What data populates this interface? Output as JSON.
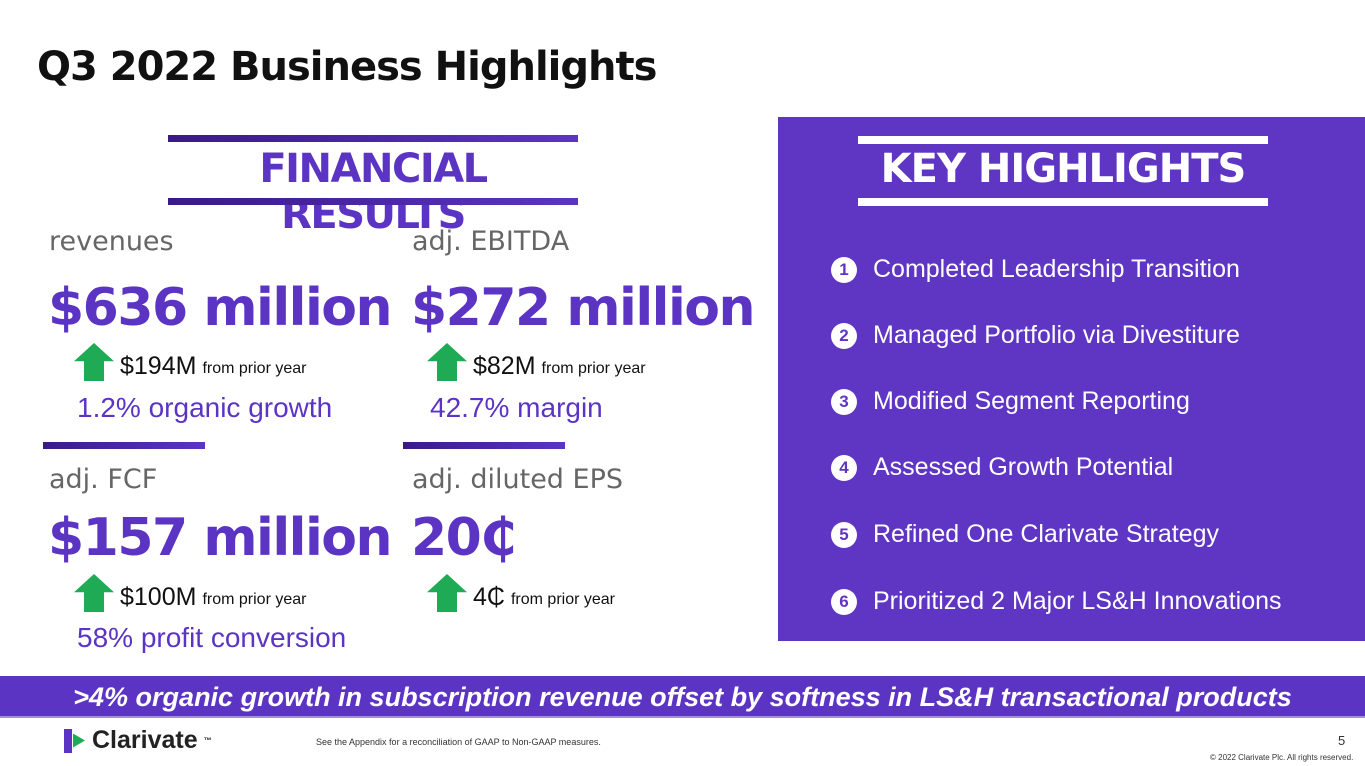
{
  "title": "Q3 2022 Business Highlights",
  "financial": {
    "heading": "FINANCIAL RESULTS",
    "metrics": [
      {
        "label": "revenues",
        "value": "$636 million",
        "change": "$194M",
        "change_suffix": "from prior year",
        "sub": "1.2% organic growth"
      },
      {
        "label": "adj. EBITDA",
        "value": "$272 million",
        "change": "$82M",
        "change_suffix": "from prior year",
        "sub": "42.7% margin"
      },
      {
        "label": "adj. FCF",
        "value": "$157 million",
        "change": "$100M",
        "change_suffix": "from prior year",
        "sub": "58% profit conversion"
      },
      {
        "label": "adj. diluted EPS",
        "value": "20₵",
        "change": "4₵",
        "change_suffix": "from prior year",
        "sub": ""
      }
    ]
  },
  "highlights": {
    "heading": "KEY HIGHLIGHTS",
    "items": [
      {
        "n": "1",
        "text": "Completed Leadership Transition"
      },
      {
        "n": "2",
        "text": "Managed Portfolio via Divestiture"
      },
      {
        "n": "3",
        "text": "Modified Segment Reporting"
      },
      {
        "n": "4",
        "text": "Assessed Growth Potential"
      },
      {
        "n": "5",
        "text": "Refined One Clarivate Strategy"
      },
      {
        "n": "6",
        "text": "Prioritized 2 Major LS&H Innovations"
      }
    ]
  },
  "banner": ">4% organic growth in subscription revenue offset by softness in LS&H transactional products",
  "footer": {
    "logo": "Clarivate",
    "tm": "™",
    "note": "See the Appendix for a reconciliation of GAAP to Non-GAAP measures.",
    "page": "5",
    "copyright": "© 2022 Clarivate Plc. All rights reserved."
  }
}
